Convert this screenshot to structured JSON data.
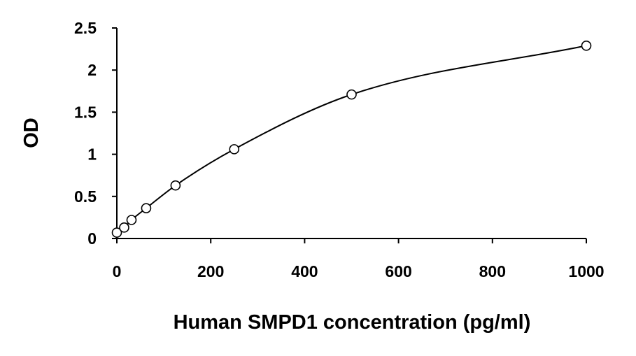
{
  "chart_data": {
    "type": "scatter",
    "title": "",
    "xlabel": "Human SMPD1 concentration (pg/ml)",
    "ylabel": "OD",
    "xlim": [
      0,
      1000
    ],
    "ylim": [
      0,
      2.5
    ],
    "x_ticks": [
      "0",
      "200",
      "400",
      "600",
      "800",
      "1000"
    ],
    "y_ticks": [
      "0",
      "0.5",
      "1",
      "1.5",
      "2",
      "2.5"
    ],
    "grid": false,
    "legend": "none",
    "series": [
      {
        "x": [
          0,
          15.625,
          31.25,
          62.5,
          125,
          250,
          500,
          1000
        ],
        "y": [
          0.07,
          0.13,
          0.22,
          0.36,
          0.63,
          1.06,
          1.71,
          2.29
        ],
        "marker": "open-circle",
        "fit": "smooth-curve"
      }
    ],
    "colors": {
      "line": "#000000",
      "marker_stroke": "#000000",
      "marker_fill": "#ffffff"
    }
  }
}
